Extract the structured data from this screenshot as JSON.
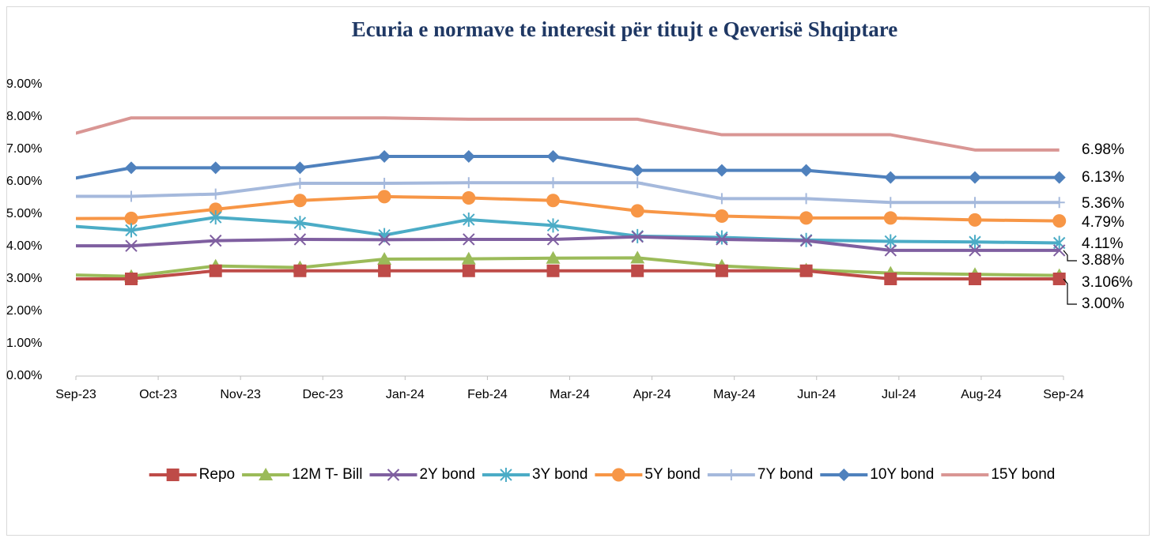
{
  "chart_data": {
    "type": "line",
    "title": "Ecuria e normave te interesit për titujt e Qeverisë Shqiptare",
    "x_labels": [
      "Sep-23",
      "Oct-23",
      "Nov-23",
      "Dec-23",
      "Jan-24",
      "Feb-24",
      "Mar-24",
      "Apr-24",
      "May-24",
      "Jun-24",
      "Jul-24",
      "Aug-24",
      "Sep-24"
    ],
    "ylim": [
      0,
      9
    ],
    "yticks": [
      {
        "value": 0,
        "label": "0.00%"
      },
      {
        "value": 1,
        "label": "1.00%"
      },
      {
        "value": 2,
        "label": "2.00%"
      },
      {
        "value": 3,
        "label": "3.00%"
      },
      {
        "value": 4,
        "label": "4.00%"
      },
      {
        "value": 5,
        "label": "5.00%"
      },
      {
        "value": 6,
        "label": "6.00%"
      },
      {
        "value": 7,
        "label": "7.00%"
      },
      {
        "value": 8,
        "label": "8.00%"
      },
      {
        "value": 9,
        "label": "9.00%"
      }
    ],
    "grid": false,
    "legend": "bottom",
    "series": [
      {
        "name": "Repo",
        "color": "#be4b48",
        "marker": "square",
        "values": [
          3.0,
          3.0,
          3.25,
          3.25,
          3.25,
          3.25,
          3.25,
          3.25,
          3.25,
          3.25,
          3.0,
          3.0,
          3.0
        ],
        "value_labels": [
          null,
          null,
          null,
          null,
          null,
          null,
          null,
          null,
          null,
          null,
          null,
          null,
          "3.00%"
        ]
      },
      {
        "name": "12M T- Bill",
        "color": "#9bbb59",
        "marker": "triangle",
        "values": [
          3.14,
          3.08,
          3.4,
          3.35,
          3.61,
          3.62,
          3.64,
          3.65,
          3.4,
          3.28,
          3.18,
          3.14,
          3.106
        ],
        "value_labels": [
          null,
          null,
          null,
          null,
          null,
          null,
          null,
          null,
          null,
          null,
          null,
          null,
          "3.106%"
        ]
      },
      {
        "name": "2Y bond",
        "color": "#7f5fa0",
        "marker": "x",
        "values": [
          4.02,
          4.02,
          4.18,
          4.22,
          4.21,
          4.22,
          4.22,
          4.3,
          4.22,
          4.18,
          3.88,
          3.88,
          3.88
        ],
        "value_labels": [
          null,
          null,
          null,
          null,
          null,
          null,
          null,
          null,
          null,
          null,
          null,
          null,
          "3.88%"
        ]
      },
      {
        "name": "3Y bond",
        "color": "#4bacc6",
        "marker": "star",
        "values": [
          4.68,
          4.5,
          4.9,
          4.73,
          4.35,
          4.83,
          4.65,
          4.32,
          4.28,
          4.2,
          4.16,
          4.14,
          4.11
        ],
        "value_labels": [
          null,
          null,
          null,
          null,
          null,
          null,
          null,
          null,
          null,
          null,
          null,
          null,
          "4.11%"
        ]
      },
      {
        "name": "5Y bond",
        "color": "#f79646",
        "marker": "circle",
        "values": [
          4.86,
          4.87,
          5.15,
          5.42,
          5.54,
          5.5,
          5.42,
          5.1,
          4.94,
          4.88,
          4.88,
          4.82,
          4.79
        ],
        "value_labels": [
          null,
          null,
          null,
          null,
          null,
          null,
          null,
          null,
          null,
          null,
          null,
          null,
          "4.79%"
        ]
      },
      {
        "name": "7Y bond",
        "color": "#a5b9dc",
        "marker": "plus",
        "values": [
          5.55,
          5.55,
          5.62,
          5.95,
          5.95,
          5.97,
          5.97,
          5.97,
          5.48,
          5.48,
          5.36,
          5.36,
          5.36
        ],
        "value_labels": [
          null,
          null,
          null,
          null,
          null,
          null,
          null,
          null,
          null,
          null,
          null,
          null,
          "5.36%"
        ]
      },
      {
        "name": "10Y bond",
        "color": "#4f81bd",
        "marker": "diamond",
        "values": [
          5.95,
          6.43,
          6.43,
          6.43,
          6.78,
          6.78,
          6.78,
          6.35,
          6.35,
          6.35,
          6.13,
          6.13,
          6.13
        ],
        "value_labels": [
          null,
          null,
          null,
          null,
          null,
          null,
          null,
          null,
          null,
          null,
          null,
          null,
          "6.13%"
        ]
      },
      {
        "name": "15Y bond",
        "color": "#d99694",
        "marker": "none",
        "values": [
          7.25,
          7.97,
          7.97,
          7.97,
          7.97,
          7.93,
          7.93,
          7.93,
          7.45,
          7.45,
          7.45,
          6.98,
          6.98
        ],
        "value_labels": [
          null,
          null,
          null,
          null,
          null,
          null,
          null,
          null,
          null,
          null,
          null,
          null,
          "6.98%"
        ]
      }
    ]
  }
}
